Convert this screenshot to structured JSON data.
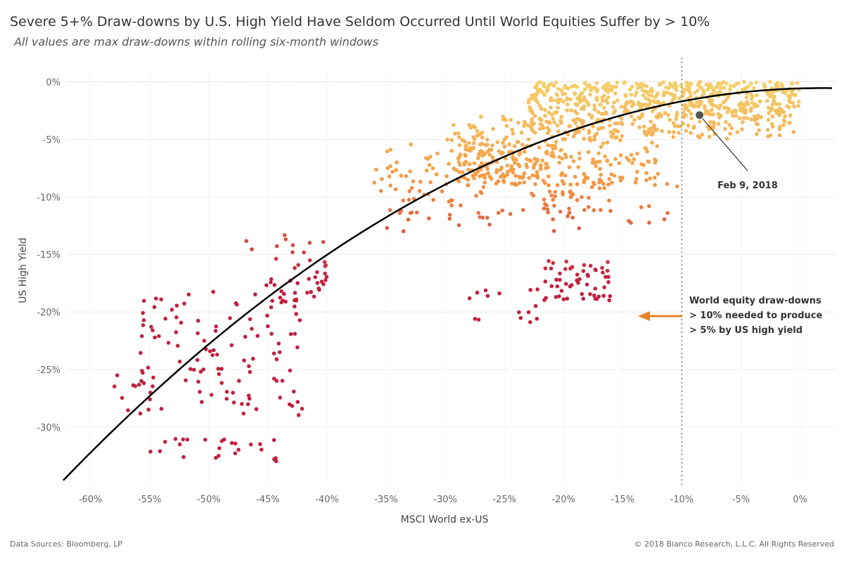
{
  "header": {
    "title": "Severe 5+% Draw-downs by U.S. High Yield Have Seldom Occurred Until World Equities Suffer by > 10%",
    "subtitle": "All values are max draw-downs within rolling six-month windows"
  },
  "footer": {
    "sources": "Data Sources: Bloomberg, LP",
    "copyright": "© 2018 Bianco Research, L.L.C. All Rights Reserved"
  },
  "colors": {
    "low": "#f5d06b",
    "mid": "#f59a45",
    "high": "#c0213f",
    "curve": "#000000",
    "arrow": "#e8832a",
    "marker": "#555555"
  },
  "chart_data": {
    "type": "scatter",
    "xlabel": "MSCI World ex-US",
    "ylabel": "US High Yield",
    "xlim": [
      -62,
      3
    ],
    "ylim": [
      -35,
      1
    ],
    "x_ticks": [
      "-60%",
      "-55%",
      "-50%",
      "-45%",
      "-40%",
      "-35%",
      "-30%",
      "-25%",
      "-20%",
      "-15%",
      "-10%",
      "-5%",
      "0%"
    ],
    "x_tick_values": [
      -60,
      -55,
      -50,
      -45,
      -40,
      -35,
      -30,
      -25,
      -20,
      -15,
      -10,
      -5,
      0
    ],
    "y_ticks": [
      "0%",
      "-5%",
      "-10%",
      "-15%",
      "-20%",
      "-25%",
      "-30%"
    ],
    "y_tick_values": [
      0,
      -5,
      -10,
      -15,
      -20,
      -25,
      -30
    ],
    "grid": true,
    "reference_line": {
      "x": -10,
      "style": "dotted"
    },
    "fit_curve": {
      "type": "quadratic",
      "points": [
        [
          -62.3,
          -34.7
        ],
        [
          -50,
          -22.8
        ],
        [
          -40,
          -14.8
        ],
        [
          -30,
          -8.9
        ],
        [
          -20,
          -4.6
        ],
        [
          -10,
          -1.9
        ],
        [
          0,
          -0.6
        ],
        [
          3,
          -0.4
        ]
      ]
    },
    "highlight": {
      "label": "Feb 9, 2018",
      "x": -8.5,
      "y": -2.9
    },
    "callout": {
      "lines": [
        "World equity draw-downs",
        "> 10% needed to produce",
        "> 5% by US high yield"
      ]
    },
    "point_clusters": [
      {
        "name": "near-zero",
        "n": 650,
        "x": [
          -23,
          0
        ],
        "y": [
          -5,
          0
        ],
        "skew": "top"
      },
      {
        "name": "mid-upper",
        "n": 220,
        "x": [
          -30,
          -12
        ],
        "y": [
          -9,
          -3
        ]
      },
      {
        "name": "dense-mid",
        "n": 120,
        "x": [
          -29,
          -20
        ],
        "y": [
          -9,
          -5
        ]
      },
      {
        "name": "upper-band",
        "n": 60,
        "x": [
          -36,
          -24
        ],
        "y": [
          -12,
          -5
        ]
      },
      {
        "name": "orange-spread",
        "n": 60,
        "x": [
          -35,
          -10
        ],
        "y": [
          -13,
          -8
        ]
      },
      {
        "name": "red-mid",
        "n": 55,
        "x": [
          -22,
          -16
        ],
        "y": [
          -19,
          -15.5
        ]
      },
      {
        "name": "red-mid-2",
        "n": 15,
        "x": [
          -28,
          -22
        ],
        "y": [
          -21,
          -18
        ]
      },
      {
        "name": "orange-cluster-20",
        "n": 30,
        "x": [
          -22,
          -17
        ],
        "y": [
          -12,
          -9.5
        ]
      },
      {
        "name": "mid-left",
        "n": 40,
        "x": [
          -47,
          -40
        ],
        "y": [
          -19,
          -13
        ]
      },
      {
        "name": "left-cluster",
        "n": 110,
        "x": [
          -56,
          -42
        ],
        "y": [
          -29,
          -18
        ]
      },
      {
        "name": "bottom-row",
        "n": 25,
        "x": [
          -55,
          -44
        ],
        "y": [
          -33,
          -31
        ]
      },
      {
        "name": "far-left",
        "n": 15,
        "x": [
          -59,
          -54
        ],
        "y": [
          -29,
          -25
        ]
      }
    ]
  }
}
